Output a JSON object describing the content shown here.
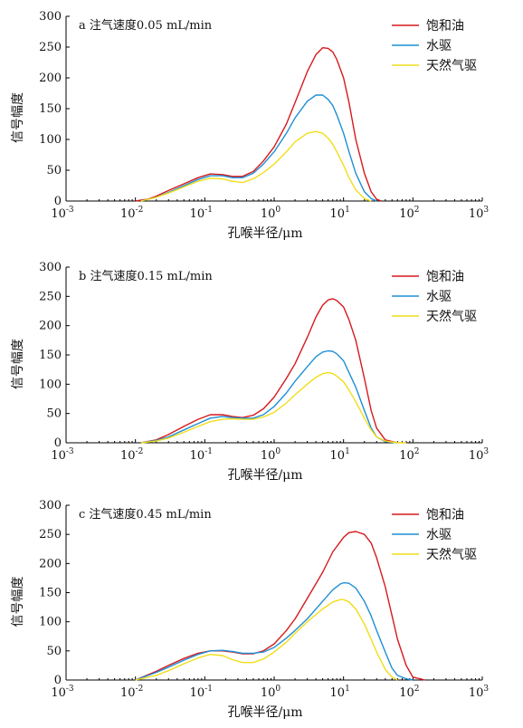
{
  "chart_data": [
    {
      "type": "line",
      "title": "a 注气速度0.05 mL/min",
      "xlabel": "孔喉半径/μm",
      "ylabel": "信号幅度",
      "xscale": "log",
      "xlim": [
        0.001,
        1000
      ],
      "ylim": [
        0,
        300
      ],
      "x_ticks": [
        0.001,
        0.01,
        0.1,
        1,
        10,
        100,
        1000
      ],
      "x_tick_labels": [
        [
          "10",
          "-3"
        ],
        [
          "10",
          "-2"
        ],
        [
          "10",
          "-1"
        ],
        [
          "10",
          "0"
        ],
        [
          "10",
          "1"
        ],
        [
          "10",
          "2"
        ],
        [
          "10",
          "3"
        ]
      ],
      "y_ticks": [
        0,
        50,
        100,
        150,
        200,
        250,
        300
      ],
      "y_tick_labels": [
        "0",
        "50",
        "100",
        "150",
        "200",
        "250",
        "300"
      ],
      "legend_position": "top-right",
      "series": [
        {
          "name": "饱和油",
          "color": "#d7191c",
          "x": [
            0.01,
            0.015,
            0.02,
            0.03,
            0.05,
            0.08,
            0.12,
            0.18,
            0.25,
            0.35,
            0.5,
            0.7,
            1,
            1.5,
            2,
            3,
            4,
            5,
            6,
            7,
            8,
            10,
            12,
            15,
            20,
            25,
            30,
            35
          ],
          "y": [
            0,
            3,
            8,
            17,
            28,
            38,
            44,
            43,
            40,
            40,
            48,
            65,
            88,
            125,
            160,
            210,
            238,
            249,
            248,
            242,
            230,
            200,
            160,
            100,
            45,
            15,
            3,
            0
          ]
        },
        {
          "name": "水驱",
          "color": "#1f8fd4",
          "x": [
            0.012,
            0.02,
            0.03,
            0.05,
            0.08,
            0.12,
            0.18,
            0.25,
            0.35,
            0.5,
            0.7,
            1,
            1.5,
            2,
            3,
            4,
            5,
            6,
            7,
            8,
            10,
            12,
            15,
            20,
            25,
            30
          ],
          "y": [
            0,
            6,
            14,
            25,
            35,
            41,
            41,
            38,
            38,
            45,
            60,
            80,
            110,
            135,
            162,
            172,
            172,
            165,
            155,
            140,
            110,
            80,
            45,
            15,
            4,
            0
          ]
        },
        {
          "name": "天然气驱",
          "color": "#f0dd1a",
          "x": [
            0.012,
            0.02,
            0.03,
            0.05,
            0.08,
            0.12,
            0.18,
            0.25,
            0.35,
            0.5,
            0.7,
            1,
            1.5,
            2,
            3,
            4,
            5,
            6,
            7,
            8,
            10,
            12,
            15,
            20,
            25
          ],
          "y": [
            0,
            6,
            13,
            23,
            32,
            37,
            36,
            32,
            30,
            36,
            46,
            60,
            80,
            96,
            110,
            113,
            110,
            102,
            92,
            80,
            58,
            38,
            18,
            4,
            0
          ]
        }
      ]
    },
    {
      "type": "line",
      "title": "b 注气速度0.15 mL/min",
      "xlabel": "孔喉半径/μm",
      "ylabel": "信号幅度",
      "xscale": "log",
      "xlim": [
        0.001,
        1000
      ],
      "ylim": [
        0,
        300
      ],
      "x_ticks": [
        0.001,
        0.01,
        0.1,
        1,
        10,
        100,
        1000
      ],
      "x_tick_labels": [
        [
          "10",
          "-3"
        ],
        [
          "10",
          "-2"
        ],
        [
          "10",
          "-1"
        ],
        [
          "10",
          "0"
        ],
        [
          "10",
          "1"
        ],
        [
          "10",
          "2"
        ],
        [
          "10",
          "3"
        ]
      ],
      "y_ticks": [
        0,
        50,
        100,
        150,
        200,
        250,
        300
      ],
      "y_tick_labels": [
        "0",
        "50",
        "100",
        "150",
        "200",
        "250",
        "300"
      ],
      "legend_position": "top-right",
      "series": [
        {
          "name": "饱和油",
          "color": "#d7191c",
          "x": [
            0.012,
            0.02,
            0.03,
            0.05,
            0.08,
            0.12,
            0.18,
            0.25,
            0.35,
            0.5,
            0.7,
            1,
            1.5,
            2,
            3,
            4,
            5,
            6,
            7,
            8,
            10,
            12,
            15,
            20,
            25,
            30,
            40,
            60
          ],
          "y": [
            0,
            5,
            14,
            28,
            40,
            48,
            48,
            45,
            43,
            47,
            58,
            78,
            110,
            135,
            180,
            215,
            235,
            244,
            246,
            243,
            232,
            210,
            175,
            110,
            55,
            25,
            5,
            0
          ]
        },
        {
          "name": "水驱",
          "color": "#1f8fd4",
          "x": [
            0.012,
            0.02,
            0.03,
            0.05,
            0.08,
            0.12,
            0.18,
            0.25,
            0.35,
            0.5,
            0.7,
            1,
            1.5,
            2,
            3,
            4,
            5,
            6,
            7,
            8,
            10,
            12,
            15,
            20,
            25,
            30,
            40,
            60
          ],
          "y": [
            0,
            4,
            10,
            22,
            33,
            42,
            45,
            43,
            42,
            42,
            48,
            62,
            85,
            105,
            130,
            147,
            155,
            157,
            156,
            152,
            140,
            120,
            95,
            55,
            25,
            10,
            2,
            0
          ]
        },
        {
          "name": "天然气驱",
          "color": "#f0dd1a",
          "x": [
            0.012,
            0.02,
            0.03,
            0.05,
            0.08,
            0.12,
            0.18,
            0.25,
            0.35,
            0.5,
            0.7,
            1,
            1.5,
            2,
            3,
            4,
            5,
            6,
            7,
            8,
            10,
            12,
            15,
            20,
            25,
            30,
            40,
            60,
            80
          ],
          "y": [
            0,
            3,
            8,
            18,
            28,
            36,
            40,
            41,
            40,
            40,
            44,
            52,
            68,
            82,
            100,
            112,
            118,
            120,
            118,
            114,
            104,
            90,
            70,
            42,
            22,
            10,
            3,
            0,
            0
          ]
        }
      ]
    },
    {
      "type": "line",
      "title": "c 注气速度0.45 mL/min",
      "xlabel": "孔喉半径/μm",
      "ylabel": "信号幅度",
      "xscale": "log",
      "xlim": [
        0.001,
        1000
      ],
      "ylim": [
        0,
        300
      ],
      "x_ticks": [
        0.001,
        0.01,
        0.1,
        1,
        10,
        100,
        1000
      ],
      "x_tick_labels": [
        [
          "10",
          "-3"
        ],
        [
          "10",
          "-2"
        ],
        [
          "10",
          "-1"
        ],
        [
          "10",
          "0"
        ],
        [
          "10",
          "1"
        ],
        [
          "10",
          "2"
        ],
        [
          "10",
          "3"
        ]
      ],
      "y_ticks": [
        0,
        50,
        100,
        150,
        200,
        250,
        300
      ],
      "y_tick_labels": [
        "0",
        "50",
        "100",
        "150",
        "200",
        "250",
        "300"
      ],
      "legend_position": "top-right",
      "series": [
        {
          "name": "饱和油",
          "color": "#d7191c",
          "x": [
            0.01,
            0.02,
            0.03,
            0.05,
            0.08,
            0.12,
            0.18,
            0.25,
            0.35,
            0.5,
            0.7,
            1,
            1.5,
            2,
            3,
            5,
            7,
            10,
            12,
            15,
            20,
            25,
            30,
            40,
            50,
            60,
            80,
            100,
            150
          ],
          "y": [
            0,
            15,
            25,
            37,
            46,
            50,
            50,
            48,
            45,
            45,
            50,
            62,
            85,
            105,
            140,
            185,
            220,
            245,
            253,
            255,
            250,
            235,
            210,
            160,
            110,
            70,
            25,
            5,
            0
          ]
        },
        {
          "name": "水驱",
          "color": "#1f8fd4",
          "x": [
            0.01,
            0.02,
            0.03,
            0.05,
            0.08,
            0.12,
            0.18,
            0.25,
            0.35,
            0.5,
            0.7,
            1,
            1.5,
            2,
            3,
            5,
            7,
            9,
            10,
            12,
            15,
            20,
            25,
            30,
            40,
            50,
            60,
            80,
            100
          ],
          "y": [
            0,
            13,
            22,
            34,
            44,
            50,
            51,
            49,
            46,
            46,
            48,
            56,
            72,
            85,
            105,
            135,
            155,
            165,
            167,
            166,
            158,
            135,
            110,
            85,
            48,
            20,
            8,
            2,
            0
          ]
        },
        {
          "name": "天然气驱",
          "color": "#f0dd1a",
          "x": [
            0.01,
            0.02,
            0.03,
            0.05,
            0.08,
            0.12,
            0.18,
            0.25,
            0.35,
            0.5,
            0.7,
            1,
            1.5,
            2,
            3,
            5,
            7,
            9,
            10,
            12,
            15,
            20,
            25,
            30,
            40,
            50,
            60
          ],
          "y": [
            0,
            8,
            16,
            28,
            38,
            44,
            42,
            35,
            30,
            30,
            36,
            48,
            65,
            80,
            100,
            122,
            134,
            138,
            138,
            134,
            122,
            96,
            70,
            48,
            18,
            5,
            0
          ]
        }
      ]
    }
  ]
}
